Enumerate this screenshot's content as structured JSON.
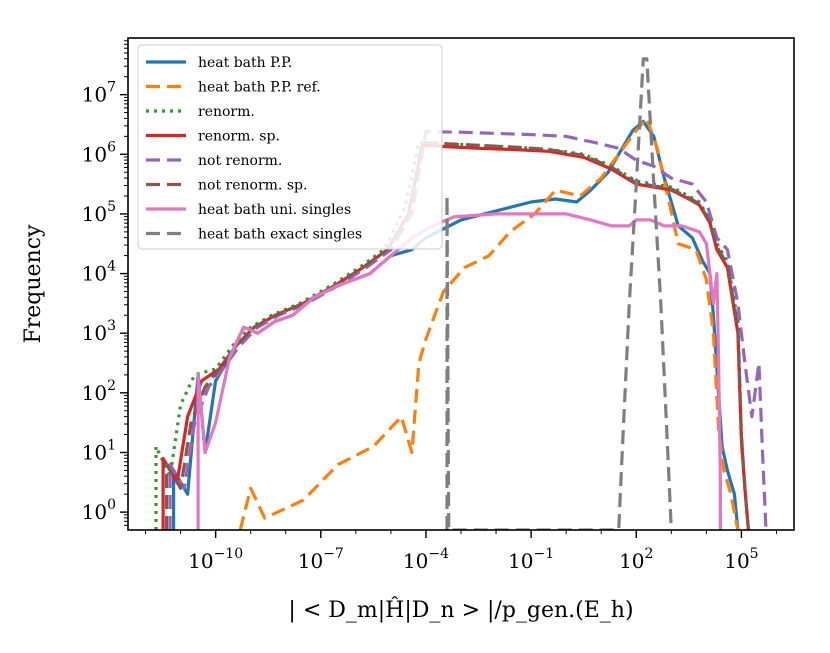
{
  "chart_data": {
    "type": "line",
    "title": "",
    "xlabel": "| < D_m|Ĥ|D_n > |/p_gen.(E_h)",
    "ylabel": "Frequency",
    "xscale": "log",
    "yscale": "log",
    "xlim_log10": [
      -12.5,
      6.5
    ],
    "ylim_log10": [
      -0.3,
      7.95
    ],
    "x_ticks": [
      {
        "base": "10",
        "exp": "−10",
        "log": -10
      },
      {
        "base": "10",
        "exp": "−7",
        "log": -7
      },
      {
        "base": "10",
        "exp": "−4",
        "log": -4
      },
      {
        "base": "10",
        "exp": "−1",
        "log": -1
      },
      {
        "base": "10",
        "exp": "2",
        "log": 2
      },
      {
        "base": "10",
        "exp": "5",
        "log": 5
      }
    ],
    "y_ticks": [
      {
        "base": "10",
        "exp": "0",
        "log": 0
      },
      {
        "base": "10",
        "exp": "1",
        "log": 1
      },
      {
        "base": "10",
        "exp": "2",
        "log": 2
      },
      {
        "base": "10",
        "exp": "3",
        "log": 3
      },
      {
        "base": "10",
        "exp": "4",
        "log": 4
      },
      {
        "base": "10",
        "exp": "5",
        "log": 5
      },
      {
        "base": "10",
        "exp": "6",
        "log": 6
      },
      {
        "base": "10",
        "exp": "7",
        "log": 7
      }
    ],
    "legend_position": "top-left",
    "series": [
      {
        "name": "heat bath P.P.",
        "color": "#1f77b4",
        "dash": "solid",
        "points_log10": [
          [
            -11.2,
            -0.3
          ],
          [
            -11.2,
            0.7
          ],
          [
            -10.8,
            0.3
          ],
          [
            -10.5,
            2.3
          ],
          [
            -10.3,
            1.0
          ],
          [
            -10,
            2.2
          ],
          [
            -9.6,
            2.6
          ],
          [
            -9.2,
            3.1
          ],
          [
            -8.8,
            3.0
          ],
          [
            -8.3,
            3.2
          ],
          [
            -7.8,
            3.3
          ],
          [
            -7.2,
            3.6
          ],
          [
            -6.5,
            3.8
          ],
          [
            -5.6,
            4.0
          ],
          [
            -5,
            4.3
          ],
          [
            -4.4,
            4.4
          ],
          [
            -4,
            4.6
          ],
          [
            -3,
            4.9
          ],
          [
            -2,
            5.05
          ],
          [
            -1,
            5.2
          ],
          [
            -0.3,
            5.25
          ],
          [
            0.3,
            5.2
          ],
          [
            0.7,
            5.4
          ],
          [
            1.2,
            5.7
          ],
          [
            1.6,
            6.1
          ],
          [
            1.9,
            6.4
          ],
          [
            2.2,
            6.55
          ],
          [
            2.5,
            6.3
          ],
          [
            2.8,
            5.6
          ],
          [
            3.2,
            4.8
          ],
          [
            3.6,
            4.6
          ],
          [
            3.9,
            4.2
          ],
          [
            4.1,
            4.0
          ],
          [
            4.2,
            3.3
          ],
          [
            4.3,
            2.4
          ],
          [
            4.45,
            1.1
          ],
          [
            4.6,
            0.7
          ],
          [
            4.8,
            0.3
          ],
          [
            4.9,
            -0.3
          ]
        ]
      },
      {
        "name": "heat bath P.P. ref.",
        "color": "#ff7f0e",
        "dash": "dashed",
        "points_log10": [
          [
            -9.3,
            -0.3
          ],
          [
            -9.0,
            0.4
          ],
          [
            -8.6,
            -0.1
          ],
          [
            -7.5,
            0.2
          ],
          [
            -6.5,
            0.8
          ],
          [
            -5.5,
            1.1
          ],
          [
            -4.7,
            1.6
          ],
          [
            -4.4,
            1.0
          ],
          [
            -4.2,
            2.5
          ],
          [
            -4.0,
            2.9
          ],
          [
            -3.5,
            3.7
          ],
          [
            -2.9,
            4.1
          ],
          [
            -2.2,
            4.3
          ],
          [
            -1.6,
            4.7
          ],
          [
            -0.9,
            5.0
          ],
          [
            -0.3,
            5.4
          ],
          [
            0.4,
            5.3
          ],
          [
            1.0,
            5.6
          ],
          [
            1.5,
            6.0
          ],
          [
            2.0,
            6.4
          ],
          [
            2.3,
            6.6
          ],
          [
            2.6,
            6.1
          ],
          [
            2.9,
            5.3
          ],
          [
            3.2,
            4.5
          ],
          [
            3.7,
            4.4
          ],
          [
            4.0,
            3.9
          ],
          [
            4.2,
            3.0
          ],
          [
            4.35,
            1.4
          ],
          [
            4.5,
            0.7
          ],
          [
            4.7,
            0.3
          ],
          [
            4.9,
            -0.3
          ]
        ]
      },
      {
        "name": "renorm.",
        "color": "#2ca02c",
        "dash": "dotted",
        "points_log10": [
          [
            -11.7,
            -0.3
          ],
          [
            -11.7,
            1.1
          ],
          [
            -11.3,
            0.6
          ],
          [
            -11.0,
            1.8
          ],
          [
            -10.6,
            2.3
          ],
          [
            -10.0,
            2.4
          ],
          [
            -9.5,
            2.8
          ],
          [
            -9.0,
            3.1
          ],
          [
            -8.4,
            3.3
          ],
          [
            -7.6,
            3.5
          ],
          [
            -6.7,
            3.8
          ],
          [
            -5.9,
            4.1
          ],
          [
            -5.2,
            4.4
          ],
          [
            -4.6,
            5.1
          ],
          [
            -4.2,
            6.2
          ],
          [
            -3.5,
            6.18
          ],
          [
            -2.5,
            6.15
          ],
          [
            -1.5,
            6.12
          ],
          [
            -0.5,
            6.08
          ],
          [
            0.5,
            6.0
          ],
          [
            1.3,
            5.8
          ],
          [
            2.0,
            5.55
          ],
          [
            2.5,
            5.5
          ],
          [
            3.0,
            5.45
          ],
          [
            3.5,
            5.3
          ],
          [
            3.8,
            5.2
          ],
          [
            4.1,
            4.9
          ],
          [
            4.3,
            4.5
          ],
          [
            4.6,
            4.2
          ],
          [
            4.9,
            3.2
          ],
          [
            5.0,
            1.3
          ],
          [
            5.1,
            0.4
          ],
          [
            5.2,
            -0.3
          ]
        ]
      },
      {
        "name": "renorm. sp.",
        "color": "#d62728",
        "dash": "solid",
        "points_log10": [
          [
            -11.5,
            -0.3
          ],
          [
            -11.5,
            0.9
          ],
          [
            -11.1,
            0.5
          ],
          [
            -10.8,
            1.6
          ],
          [
            -10.4,
            2.2
          ],
          [
            -9.9,
            2.4
          ],
          [
            -9.4,
            2.8
          ],
          [
            -8.9,
            3.1
          ],
          [
            -8.3,
            3.3
          ],
          [
            -7.5,
            3.5
          ],
          [
            -6.6,
            3.8
          ],
          [
            -5.8,
            4.1
          ],
          [
            -5.1,
            4.4
          ],
          [
            -4.5,
            5.0
          ],
          [
            -4.1,
            6.15
          ],
          [
            -3.5,
            6.13
          ],
          [
            -2.5,
            6.1
          ],
          [
            -1.5,
            6.08
          ],
          [
            -0.5,
            6.05
          ],
          [
            0.5,
            5.95
          ],
          [
            1.3,
            5.75
          ],
          [
            2.0,
            5.5
          ],
          [
            2.5,
            5.45
          ],
          [
            3.0,
            5.4
          ],
          [
            3.5,
            5.25
          ],
          [
            3.8,
            5.15
          ],
          [
            4.1,
            4.85
          ],
          [
            4.3,
            4.4
          ],
          [
            4.6,
            4.1
          ],
          [
            4.9,
            3.0
          ],
          [
            5.0,
            1.2
          ],
          [
            5.1,
            0.4
          ],
          [
            5.2,
            -0.3
          ]
        ]
      },
      {
        "name": "not renorm.",
        "color": "#9467bd",
        "dash": "dashed",
        "points_log10": [
          [
            -11.3,
            -0.3
          ],
          [
            -11.3,
            0.8
          ],
          [
            -10.9,
            0.4
          ],
          [
            -10.6,
            1.5
          ],
          [
            -10.2,
            2.1
          ],
          [
            -9.8,
            2.4
          ],
          [
            -9.3,
            2.8
          ],
          [
            -8.8,
            3.1
          ],
          [
            -8.2,
            3.3
          ],
          [
            -7.4,
            3.5
          ],
          [
            -6.5,
            3.8
          ],
          [
            -5.7,
            4.1
          ],
          [
            -5.0,
            4.4
          ],
          [
            -4.4,
            5.0
          ],
          [
            -4.0,
            6.38
          ],
          [
            -3.0,
            6.37
          ],
          [
            -2.0,
            6.35
          ],
          [
            -1.0,
            6.33
          ],
          [
            0.0,
            6.3
          ],
          [
            0.8,
            6.2
          ],
          [
            1.5,
            6.1
          ],
          [
            2.0,
            5.9
          ],
          [
            2.5,
            5.8
          ],
          [
            3.0,
            5.6
          ],
          [
            3.6,
            5.5
          ],
          [
            4.0,
            5.2
          ],
          [
            4.3,
            4.6
          ],
          [
            4.6,
            4.4
          ],
          [
            4.9,
            3.5
          ],
          [
            5.1,
            2.5
          ],
          [
            5.3,
            1.6
          ],
          [
            5.5,
            2.5
          ],
          [
            5.6,
            1.0
          ],
          [
            5.7,
            -0.3
          ]
        ]
      },
      {
        "name": "not renorm. sp.",
        "color": "#8c564b",
        "dash": "dashed",
        "points_log10": [
          [
            -11.4,
            -0.3
          ],
          [
            -11.4,
            0.8
          ],
          [
            -11.0,
            0.4
          ],
          [
            -10.7,
            1.5
          ],
          [
            -10.3,
            2.1
          ],
          [
            -9.9,
            2.4
          ],
          [
            -9.4,
            2.8
          ],
          [
            -8.9,
            3.1
          ],
          [
            -8.3,
            3.3
          ],
          [
            -7.5,
            3.5
          ],
          [
            -6.6,
            3.8
          ],
          [
            -5.8,
            4.1
          ],
          [
            -5.1,
            4.4
          ],
          [
            -4.5,
            5.0
          ],
          [
            -4.1,
            6.2
          ],
          [
            -3.5,
            6.18
          ],
          [
            -2.5,
            6.15
          ],
          [
            -1.5,
            6.12
          ],
          [
            -0.5,
            6.08
          ],
          [
            0.5,
            5.98
          ],
          [
            1.3,
            5.78
          ],
          [
            2.0,
            5.52
          ],
          [
            2.5,
            5.47
          ],
          [
            3.0,
            5.42
          ],
          [
            3.5,
            5.27
          ],
          [
            3.8,
            5.17
          ],
          [
            4.1,
            4.87
          ],
          [
            4.3,
            4.45
          ],
          [
            4.6,
            4.15
          ],
          [
            4.9,
            3.1
          ],
          [
            5.0,
            1.3
          ],
          [
            5.1,
            0.4
          ],
          [
            5.2,
            -0.3
          ]
        ]
      },
      {
        "name": "heat bath uni. singles",
        "color": "#e377c2",
        "dash": "solid",
        "points_log10": [
          [
            -10.5,
            -0.3
          ],
          [
            -10.5,
            2.3
          ],
          [
            -10.3,
            1.0
          ],
          [
            -10.0,
            1.5
          ],
          [
            -9.6,
            2.6
          ],
          [
            -9.2,
            3.1
          ],
          [
            -8.8,
            3.0
          ],
          [
            -8.3,
            3.2
          ],
          [
            -7.8,
            3.3
          ],
          [
            -7.2,
            3.6
          ],
          [
            -6.5,
            3.8
          ],
          [
            -5.6,
            4.0
          ],
          [
            -5.0,
            4.3
          ],
          [
            -4.4,
            4.6
          ],
          [
            -3.8,
            4.8
          ],
          [
            -3.2,
            4.95
          ],
          [
            -2.0,
            5.0
          ],
          [
            -1.0,
            5.0
          ],
          [
            0.0,
            5.0
          ],
          [
            0.7,
            4.9
          ],
          [
            1.3,
            4.8
          ],
          [
            1.8,
            4.8
          ],
          [
            2.0,
            4.9
          ],
          [
            2.4,
            4.9
          ],
          [
            2.8,
            4.8
          ],
          [
            3.3,
            4.8
          ],
          [
            3.8,
            4.7
          ],
          [
            4.0,
            4.5
          ],
          [
            4.2,
            3.5
          ],
          [
            4.3,
            4.0
          ],
          [
            4.35,
            2.5
          ],
          [
            4.4,
            0.5
          ],
          [
            4.4,
            -0.3
          ]
        ]
      },
      {
        "name": "heat bath exact singles",
        "color": "#7f7f7f",
        "dash": "dashed",
        "points_log10": [
          [
            -3.4,
            -0.3
          ],
          [
            -3.4,
            5.3
          ],
          [
            -3.35,
            -0.3
          ],
          [
            1.5,
            -0.3
          ],
          [
            1.6,
            1.0
          ],
          [
            1.8,
            3.5
          ],
          [
            2.0,
            5.5
          ],
          [
            2.2,
            7.6
          ],
          [
            2.3,
            7.6
          ],
          [
            2.5,
            5.5
          ],
          [
            2.7,
            3.5
          ],
          [
            2.9,
            1.0
          ],
          [
            3.0,
            -0.3
          ]
        ]
      }
    ]
  }
}
